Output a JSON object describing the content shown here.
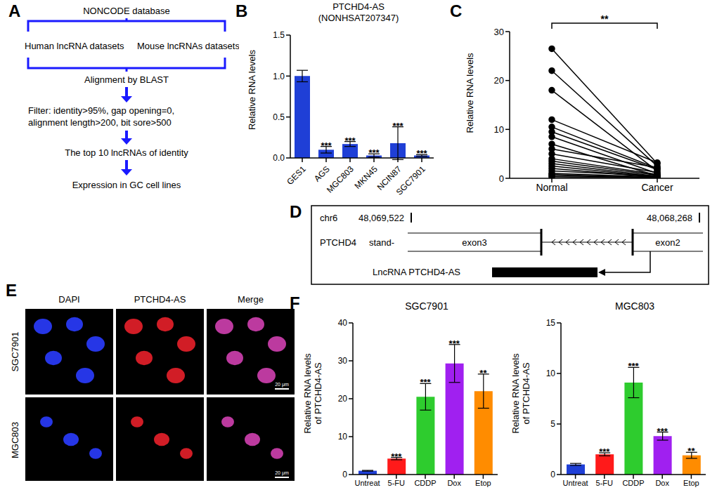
{
  "chart_data": [
    {
      "panel": "B",
      "type": "bar",
      "title": "PTCHD4-AS",
      "subtitle": "(NONHSAT207347)",
      "y_label": "Relative RNA levels",
      "categories": [
        "GES1",
        "AGS",
        "MGC803",
        "MKN45",
        "NCIN87",
        "SGC7901"
      ],
      "values": [
        1.0,
        0.1,
        0.17,
        0.03,
        0.18,
        0.03
      ],
      "errors": [
        0.07,
        0.04,
        0.03,
        0.02,
        0.2,
        0.01
      ],
      "annotations": [
        null,
        "***",
        "***",
        "***",
        "***",
        "***"
      ],
      "color": "#1f3fd6",
      "ylim": [
        0,
        1.5
      ],
      "yticks": [
        {
          "value": 0,
          "label": "0.0"
        },
        {
          "value": 0.5,
          "label": "0.5"
        },
        {
          "value": 1,
          "label": "1.0"
        },
        {
          "value": 1.5,
          "label": "1.5"
        }
      ]
    },
    {
      "panel": "C",
      "type": "paired_dot",
      "y_label": "Relative RNA levels",
      "categories": [
        "Normal",
        "Cancer"
      ],
      "pairs": [
        [
          26.5,
          3
        ],
        [
          22,
          2.5
        ],
        [
          18,
          1.5
        ],
        [
          12,
          3.2
        ],
        [
          10.5,
          2
        ],
        [
          9.5,
          1.8
        ],
        [
          8.5,
          1
        ],
        [
          7,
          0.5
        ],
        [
          6,
          2.2
        ],
        [
          5,
          1.2
        ],
        [
          4,
          0.8
        ],
        [
          3.5,
          0.6
        ],
        [
          3,
          0.4
        ],
        [
          2.5,
          0.3
        ],
        [
          2,
          0.2
        ],
        [
          1.5,
          0.5
        ],
        [
          1,
          0.3
        ],
        [
          0.8,
          0.1
        ],
        [
          0.5,
          0.2
        ],
        [
          0.3,
          0.1
        ]
      ],
      "annotation": "**",
      "color": "#000000",
      "marker": "circle",
      "ylim": [
        0,
        30
      ],
      "yticks": [
        0,
        10,
        20,
        30
      ]
    },
    {
      "panel": "F",
      "type": "bar",
      "title": "SGC7901",
      "y_label": [
        "Relative RNA levels",
        "of PTCHD4-AS"
      ],
      "categories": [
        "Untreat",
        "5-FU",
        "CDDP",
        "Dox",
        "Etop"
      ],
      "values": [
        1,
        4.2,
        20.5,
        29.3,
        22
      ],
      "errors": [
        0.1,
        0.3,
        3.5,
        5,
        4.5
      ],
      "annotations": [
        null,
        "***",
        "***",
        "***",
        "**"
      ],
      "colors": [
        "#1f3fd6",
        "#ff1a1a",
        "#2ecc2e",
        "#a020f0",
        "#ff8c00"
      ],
      "ylim": [
        0,
        40
      ],
      "yticks": [
        0,
        10,
        20,
        30,
        40
      ]
    },
    {
      "type": "bar",
      "title": "MGC803",
      "y_label": [
        "Relative RNA levels",
        "of PTCHD4-AS"
      ],
      "categories": [
        "Untreat",
        "5-FU",
        "CDDP",
        "Dox",
        "Etop"
      ],
      "values": [
        1,
        2,
        9.1,
        3.8,
        1.9
      ],
      "errors": [
        0.1,
        0.15,
        1.5,
        0.4,
        0.3
      ],
      "annotations": [
        null,
        "***",
        "***",
        "***",
        "**"
      ],
      "colors": [
        "#1f3fd6",
        "#ff1a1a",
        "#2ecc2e",
        "#a020f0",
        "#ff8c00"
      ],
      "ylim": [
        0,
        15
      ],
      "yticks": [
        0,
        5,
        10,
        15
      ]
    }
  ],
  "flowchart": {
    "panel": "A",
    "source": "NONCODE database",
    "datasets": [
      "Human lncRNA datasets",
      "Mouse lncRNAs datasets"
    ],
    "steps": [
      [
        "Alignment by BLAST"
      ],
      [
        "Filter: identity>95%, gap opening=0,",
        "alignment length>200, bit sore>500"
      ],
      [
        "The top 10 lncRNAs of identity"
      ],
      [
        "Expression in GC cell lines"
      ]
    ]
  },
  "gene_diagram": {
    "panel": "D",
    "chromosome": "chr6",
    "start": "48,069,522",
    "end": "48,068,268",
    "gene": "PTCHD4",
    "strand": "stand-",
    "exons": [
      "exon3",
      "exon2"
    ],
    "lncrna": "LncRNA PTCHD4-AS"
  },
  "images": {
    "panel": "E",
    "columns": [
      "DAPI",
      "PTCHD4-AS",
      "Merge"
    ],
    "rows": [
      "SGC7901",
      "MGC803"
    ],
    "scale_bar": "20 μm"
  }
}
